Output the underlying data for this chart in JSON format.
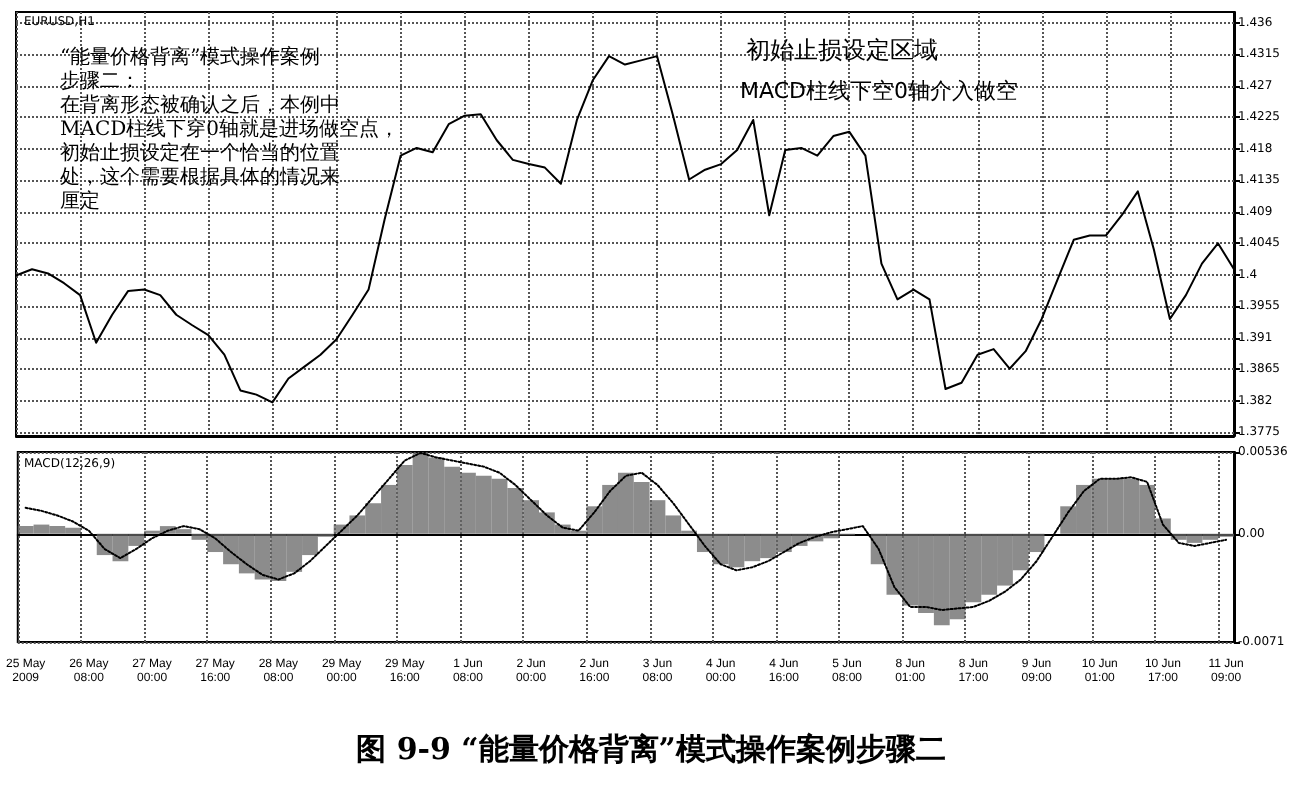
{
  "chart_data": [
    {
      "type": "line",
      "color": "#000000",
      "categories": [
        null,
        null,
        null,
        null,
        null,
        null,
        null,
        null,
        null,
        null,
        null,
        null,
        null,
        null,
        null,
        null,
        null,
        null,
        null,
        null,
        null,
        null,
        null,
        null,
        null,
        null,
        null,
        null,
        null,
        null,
        null,
        null,
        null,
        null,
        null,
        null,
        null,
        null,
        null,
        null,
        null,
        null,
        null,
        null,
        null,
        null,
        null,
        null,
        null,
        null,
        null,
        null,
        null,
        null,
        null,
        null,
        null,
        null,
        null,
        null,
        null,
        null,
        null,
        null,
        null,
        null,
        null,
        null,
        null,
        null,
        null,
        null,
        null,
        null,
        null,
        null,
        null
      ],
      "values": [
        1.3999,
        1.4008,
        1.4002,
        1.3988,
        1.3971,
        1.3903,
        1.3943,
        1.3977,
        1.3979,
        1.3971,
        1.3943,
        1.3928,
        1.3914,
        1.3886,
        1.3835,
        1.3829,
        1.3818,
        1.3852,
        1.3869,
        1.3886,
        1.3908,
        1.3943,
        1.3979,
        1.4079,
        1.417,
        1.4181,
        1.4175,
        1.4215,
        1.4227,
        1.4229,
        1.4192,
        1.4164,
        1.4158,
        1.4153,
        1.413,
        1.4221,
        1.4278,
        1.4312,
        1.43,
        1.4306,
        1.4312,
        1.4227,
        1.4136,
        1.415,
        1.4158,
        1.4178,
        1.4221,
        1.4085,
        1.4178,
        1.4181,
        1.417,
        1.4198,
        1.4204,
        1.417,
        1.4016,
        1.3965,
        1.3979,
        1.3965,
        1.3837,
        1.3846,
        1.3886,
        1.3894,
        1.3866,
        1.3891,
        1.3937,
        1.3994,
        1.405,
        1.4056,
        1.4056,
        1.4085,
        1.4119,
        1.4036,
        1.3937,
        1.3971,
        1.4016,
        1.4045,
        1.4008
      ],
      "ylim": [
        1.377,
        1.4375
      ],
      "yticks": [
        1.3775,
        1.382,
        1.3865,
        1.391,
        1.3955,
        1.4,
        1.4045,
        1.409,
        1.4135,
        1.418,
        1.4225,
        1.427,
        1.4315,
        1.436
      ],
      "tick_labels": "y",
      "grid": true,
      "annotations": [
        "EURUSD,H1",
        "“能量价格背离”模式操作案例",
        "步骤二：",
        "在背离形态被确认之后，本例中",
        "MACD柱线下穿0轴就是进场做空点，",
        "初始止损设定在一个恰当的位置",
        "处，这个需要根据具体的情况来",
        "厘定",
        "初始止损设定区域",
        "MACD柱线下空0轴介入做空"
      ]
    },
    {
      "type": "bar",
      "title": "图 9-9 “能量价格背离”模式操作案例步骤二",
      "categories": [
        "25 May 2009",
        null,
        null,
        null,
        "26 May 08:00",
        null,
        null,
        null,
        "27 May 00:00",
        null,
        null,
        null,
        "27 May 16:00",
        null,
        null,
        null,
        "28 May 08:00",
        null,
        null,
        null,
        "29 May 00:00",
        null,
        null,
        null,
        "29 May 16:00",
        null,
        null,
        null,
        "1 Jun 08:00",
        null,
        null,
        null,
        "2 Jun 00:00",
        null,
        null,
        null,
        "2 Jun 16:00",
        null,
        null,
        null,
        "3 Jun 08:00",
        null,
        null,
        null,
        "4 Jun 00:00",
        null,
        null,
        null,
        "4 Jun 16:00",
        null,
        null,
        null,
        "5 Jun 08:00",
        null,
        null,
        null,
        "8 Jun 01:00",
        null,
        null,
        null,
        "8 Jun 17:00",
        null,
        null,
        null,
        "9 Jun 09:00",
        null,
        null,
        null,
        "10 Jun 01:00",
        null,
        null,
        null,
        "10 Jun 17:00",
        null,
        null,
        null,
        "11 Jun 09:00"
      ],
      "series": [
        {
          "type": "bar",
          "color": "#666666",
          "values": [
            0.0005,
            0.0006,
            0.0005,
            0.0004,
            0,
            -0.0014,
            -0.0018,
            -0.0008,
            0.0002,
            0.0005,
            0.0003,
            -0.0004,
            -0.0012,
            -0.002,
            -0.0026,
            -0.003,
            -0.0031,
            -0.0025,
            -0.0014,
            -0.0002,
            0.0006,
            0.0012,
            0.002,
            0.0032,
            0.0045,
            0.0053,
            0.005,
            0.0044,
            0.004,
            0.0038,
            0.0036,
            0.003,
            0.0022,
            0.0014,
            0.0006,
            0.0002,
            0.0018,
            0.0032,
            0.004,
            0.0034,
            0.0022,
            0.0012,
            0.0002,
            -0.0012,
            -0.002,
            -0.0022,
            -0.0018,
            -0.0016,
            -0.0012,
            -0.0008,
            -0.0005,
            -0.0003,
            -0.0001,
            0,
            -0.002,
            -0.004,
            -0.0047,
            -0.0052,
            -0.006,
            -0.0056,
            -0.0045,
            -0.004,
            -0.0034,
            -0.0024,
            -0.0012,
            0,
            0.0018,
            0.0032,
            0.0036,
            0.0036,
            0.0036,
            0.0032,
            0.001,
            -0.0004,
            -0.0006,
            -0.0004,
            -0.0002
          ]
        },
        {
          "type": "line",
          "color": "#000000",
          "line_style": "dotted",
          "values": [
            0.0017,
            0.0015,
            0.0012,
            0.0008,
            0.0002,
            -0.001,
            -0.0016,
            -0.001,
            -0.0003,
            0.0002,
            0.0005,
            0.0003,
            -0.0003,
            -0.0012,
            -0.002,
            -0.0027,
            -0.003,
            -0.0026,
            -0.0018,
            -0.0008,
            0.0002,
            0.0012,
            0.0024,
            0.0036,
            0.0048,
            0.0053,
            0.005,
            0.0048,
            0.0046,
            0.0044,
            0.004,
            0.0032,
            0.0022,
            0.0012,
            0.0004,
            0.0002,
            0.0014,
            0.0028,
            0.0038,
            0.004,
            0.0032,
            0.002,
            0.0006,
            -0.0008,
            -0.002,
            -0.0024,
            -0.0022,
            -0.0018,
            -0.0012,
            -0.0006,
            -0.0002,
            0.0001,
            0.0003,
            0.0005,
            -0.001,
            -0.0035,
            -0.0048,
            -0.0048,
            -0.005,
            -0.0049,
            -0.0048,
            -0.0044,
            -0.0038,
            -0.003,
            -0.0018,
            -0.0002,
            0.0014,
            0.0028,
            0.0036,
            0.0036,
            0.0037,
            0.0034,
            0.0006,
            -0.0006,
            -0.0008,
            -0.0006,
            -0.0004
          ]
        }
      ],
      "ylim": [
        -0.0071,
        0.00536
      ],
      "yticks": [
        {
          "value": 0.00536,
          "label": "0.00536"
        },
        {
          "value": 0,
          "label": "0.00"
        },
        {
          "value": -0.0071,
          "label": "-0.0071"
        }
      ],
      "grid": true,
      "annotations": [
        "MACD(12,26,9)"
      ]
    }
  ]
}
